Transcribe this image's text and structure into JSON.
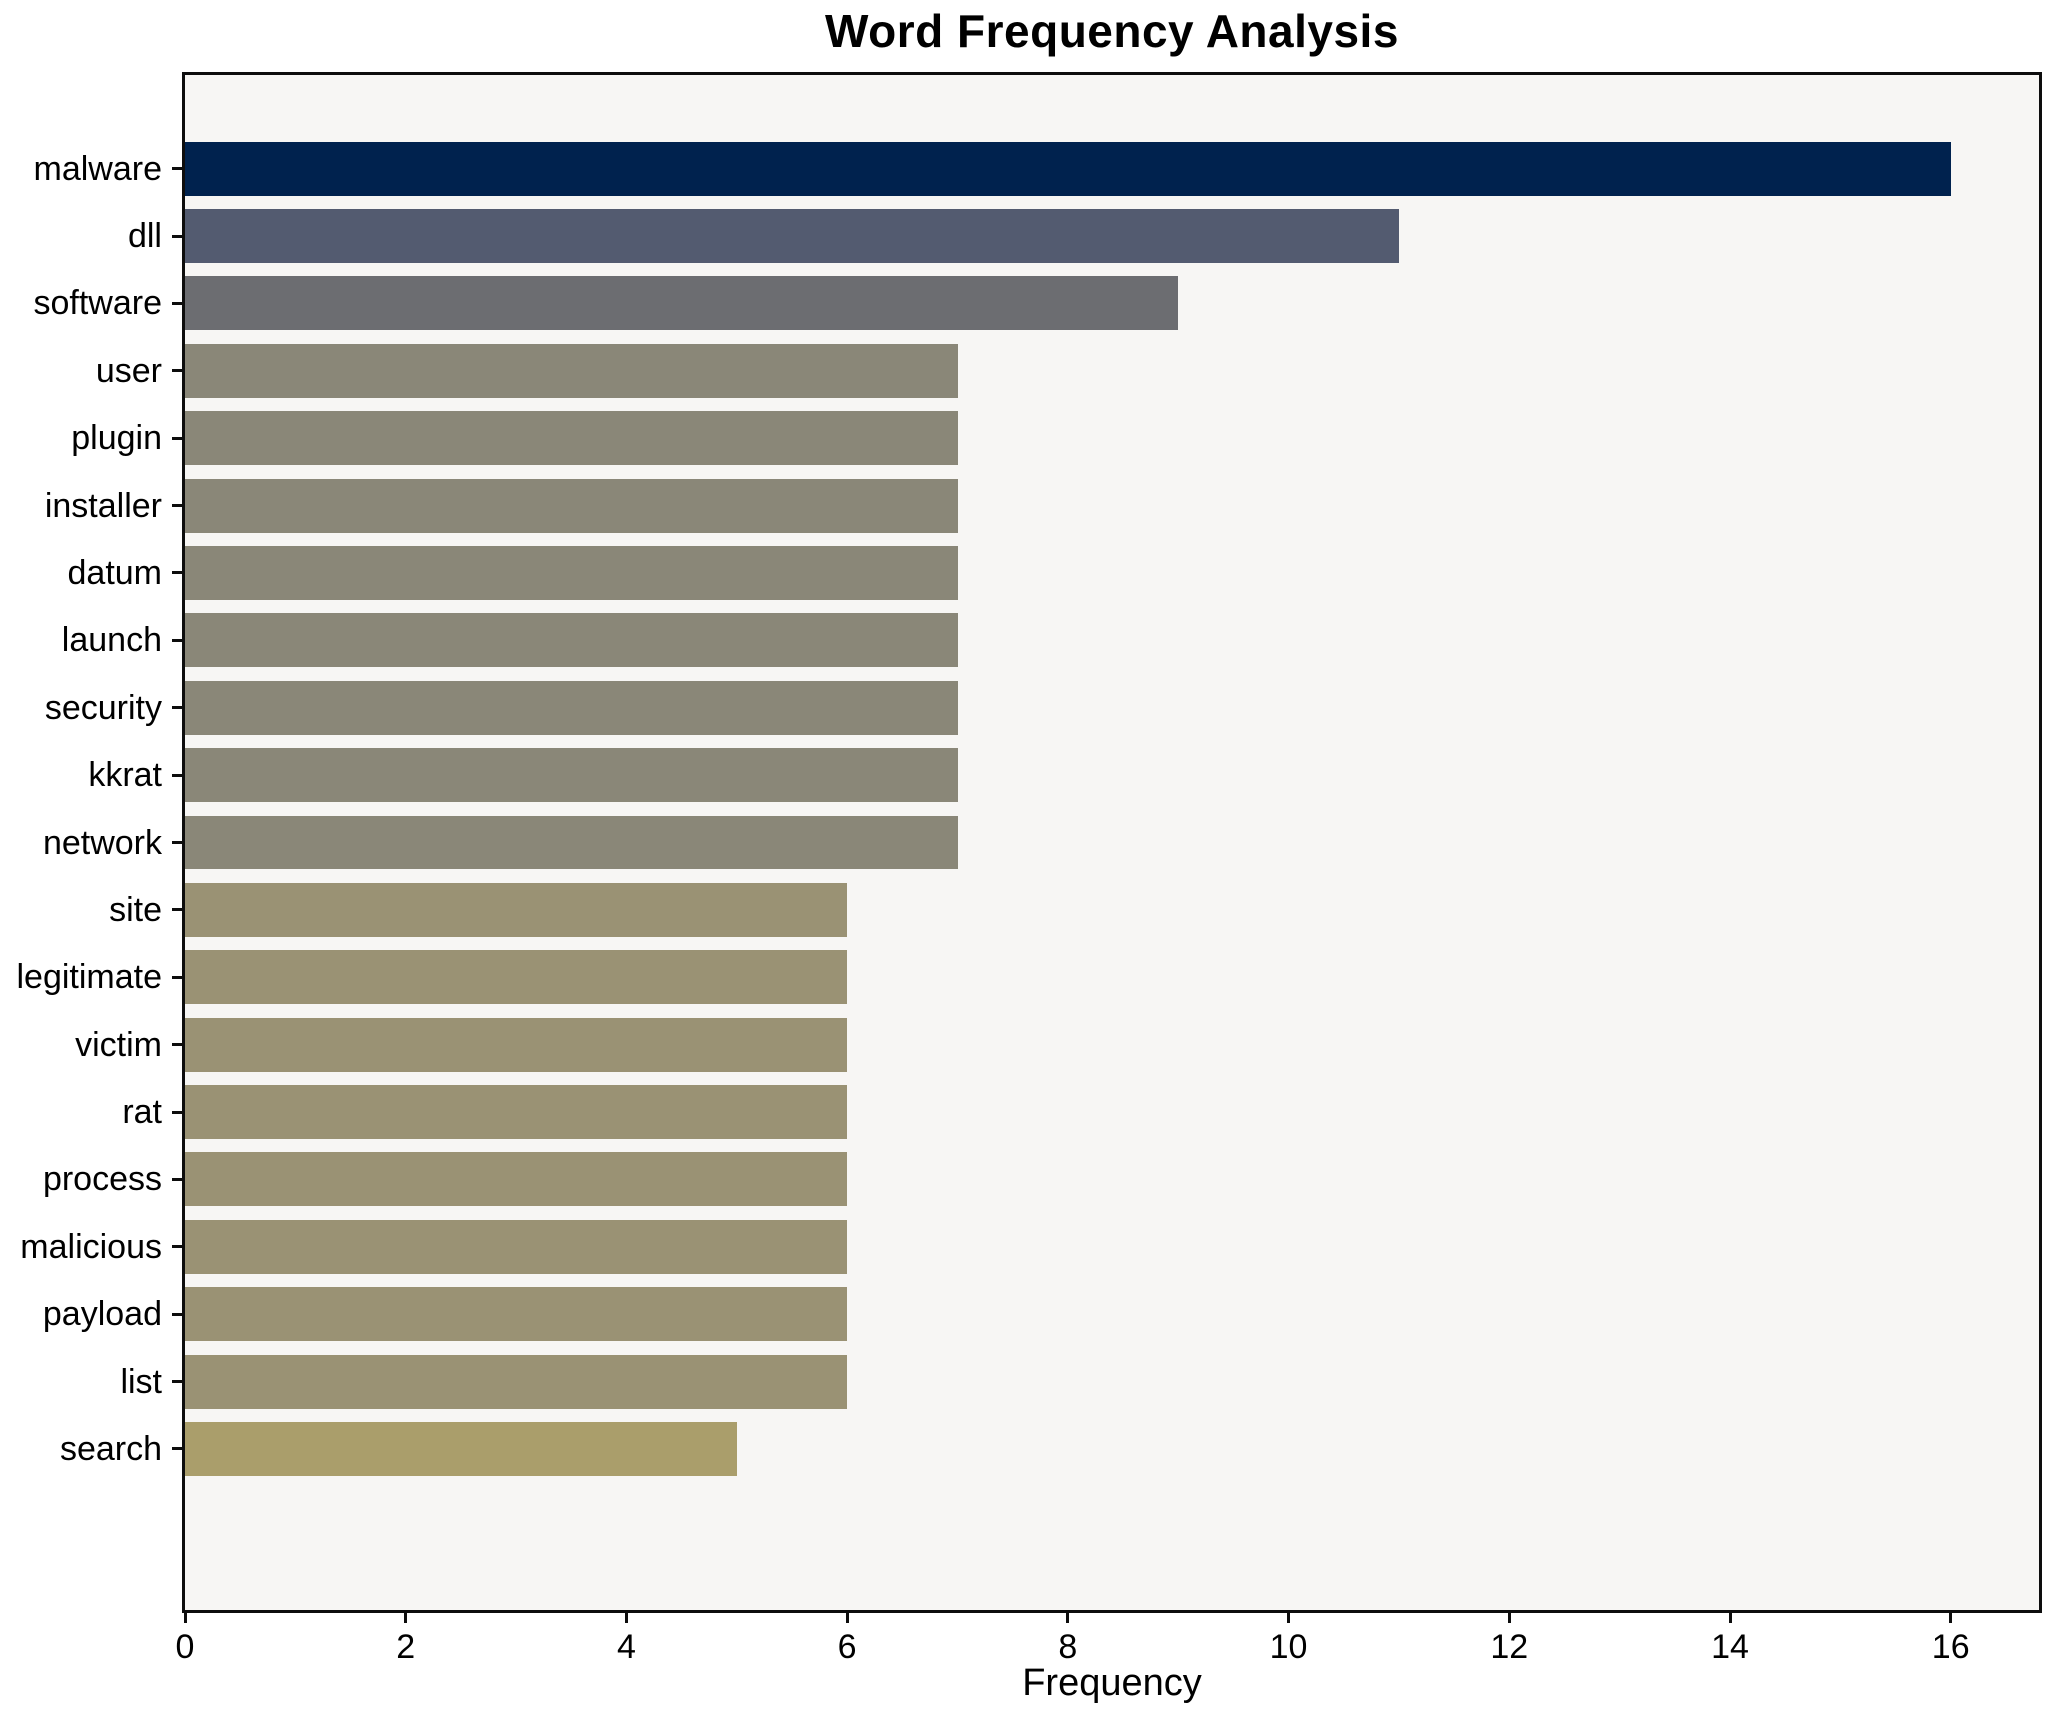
{
  "figure": {
    "title": "Word Frequency Analysis",
    "xlabel": "Frequency"
  },
  "chart_data": {
    "type": "bar",
    "orientation": "horizontal",
    "title": "Word Frequency Analysis",
    "xlabel": "Frequency",
    "ylabel": "",
    "categories": [
      "malware",
      "dll",
      "software",
      "user",
      "plugin",
      "installer",
      "datum",
      "launch",
      "security",
      "kkrat",
      "network",
      "site",
      "legitimate",
      "victim",
      "rat",
      "process",
      "malicious",
      "payload",
      "list",
      "search"
    ],
    "values": [
      16,
      11,
      9,
      7,
      7,
      7,
      7,
      7,
      7,
      7,
      7,
      6,
      6,
      6,
      6,
      6,
      6,
      6,
      6,
      5
    ],
    "bar_colors": [
      "#00224e",
      "#535b70",
      "#6c6d71",
      "#8a8778",
      "#8a8778",
      "#8a8778",
      "#8a8778",
      "#8a8778",
      "#8a8778",
      "#8a8778",
      "#8a8778",
      "#9a9274",
      "#9a9274",
      "#9a9274",
      "#9a9274",
      "#9a9274",
      "#9a9274",
      "#9a9274",
      "#9a9274",
      "#aa9e6b"
    ],
    "xticks": [
      0,
      2,
      4,
      6,
      8,
      10,
      12,
      14,
      16
    ],
    "xlim": [
      0,
      16.8
    ],
    "grid": false,
    "legend_position": "none",
    "plot_bg": "#f7f6f4",
    "fig_bg": "#ffffff",
    "spine_color": "#0d0d0d"
  }
}
